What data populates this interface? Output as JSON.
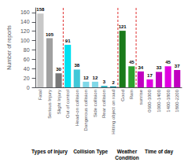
{
  "chart_data": {
    "type": "bar",
    "categories": [
      "Fatal",
      "Serious Injury",
      "Slight Injury",
      "Out of control",
      "Head-on collision",
      "Dangerous collision",
      "Side collision",
      "Rear collision",
      "Hitting object on road",
      "Good",
      "Rain",
      "sunrise",
      "0600-1000",
      "1000-1400",
      "1400-1800",
      "1800-2200"
    ],
    "values": [
      158,
      105,
      30,
      91,
      38,
      12,
      12,
      3,
      2,
      121,
      45,
      34,
      17,
      33,
      45,
      37
    ],
    "colors": [
      "#c8c8c8",
      "#a0a0a0",
      "#787878",
      "#00e0f0",
      "#40c8d8",
      "#80d8e8",
      "#80d8e8",
      "#20b0c0",
      "#008898",
      "#1a7a1a",
      "#2da02d",
      "#c000c0",
      "#e000e0",
      "#c000c0",
      "#e000e0",
      "#c000c0"
    ],
    "ylabel": "Number of reports",
    "ylim": [
      0,
      170
    ],
    "yticks": [
      0,
      20,
      40,
      60,
      80,
      100,
      120,
      140,
      160
    ],
    "data_labels": true,
    "grid": false,
    "annotations": [
      {
        "text": "Types of Injury",
        "from": "Fatal",
        "to": "Slight Injury"
      },
      {
        "text": "Collision Type",
        "from": "Out of control",
        "to": "Hitting object on road"
      },
      {
        "text": "Weather\nCondition",
        "from": "Good",
        "to": "Rain"
      },
      {
        "text": "Time of day",
        "from": "sunrise",
        "to": "1800-2200"
      }
    ]
  }
}
